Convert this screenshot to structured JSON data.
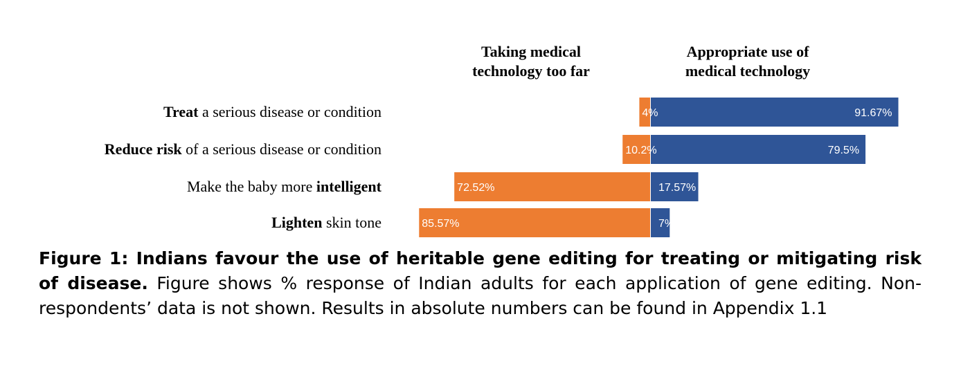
{
  "headers": {
    "left": [
      "Taking medical",
      "technology too far"
    ],
    "right": [
      "Appropriate use of",
      "medical technology"
    ]
  },
  "colors": {
    "too_far": "#ED7D31",
    "appropriate": "#2F5597"
  },
  "chart_data": {
    "type": "bar",
    "orientation": "horizontal-diverging",
    "categories": [
      [
        {
          "text": "Treat",
          "bold": true
        },
        {
          "text": " a serious disease or condition",
          "bold": false
        }
      ],
      [
        {
          "text": "Reduce risk",
          "bold": true
        },
        {
          "text": " of a serious disease or condition",
          "bold": false
        }
      ],
      [
        {
          "text": "Make the baby more ",
          "bold": false
        },
        {
          "text": "intelligent",
          "bold": true
        }
      ],
      [
        {
          "text": "Lighten",
          "bold": true
        },
        {
          "text": " skin tone",
          "bold": false
        }
      ]
    ],
    "series": [
      {
        "name": "Taking medical technology too far",
        "values": [
          4,
          10.2,
          72.52,
          85.57
        ],
        "labels": [
          "4%",
          "10.2%",
          "72.52%",
          "85.57%"
        ]
      },
      {
        "name": "Appropriate use of medical technology",
        "values": [
          91.67,
          79.5,
          17.57,
          7
        ],
        "labels": [
          "91.67%",
          "79.5%",
          "17.57%",
          "7%"
        ]
      }
    ]
  },
  "caption": {
    "bold": "Figure 1: Indians favour the use of heritable gene editing for treating or mitigating risk of disease.",
    "text": " Figure shows % response of Indian adults for each application of gene editing. Non-respondents’ data is not shown. Results in absolute numbers can be found in Appendix 1.1"
  }
}
